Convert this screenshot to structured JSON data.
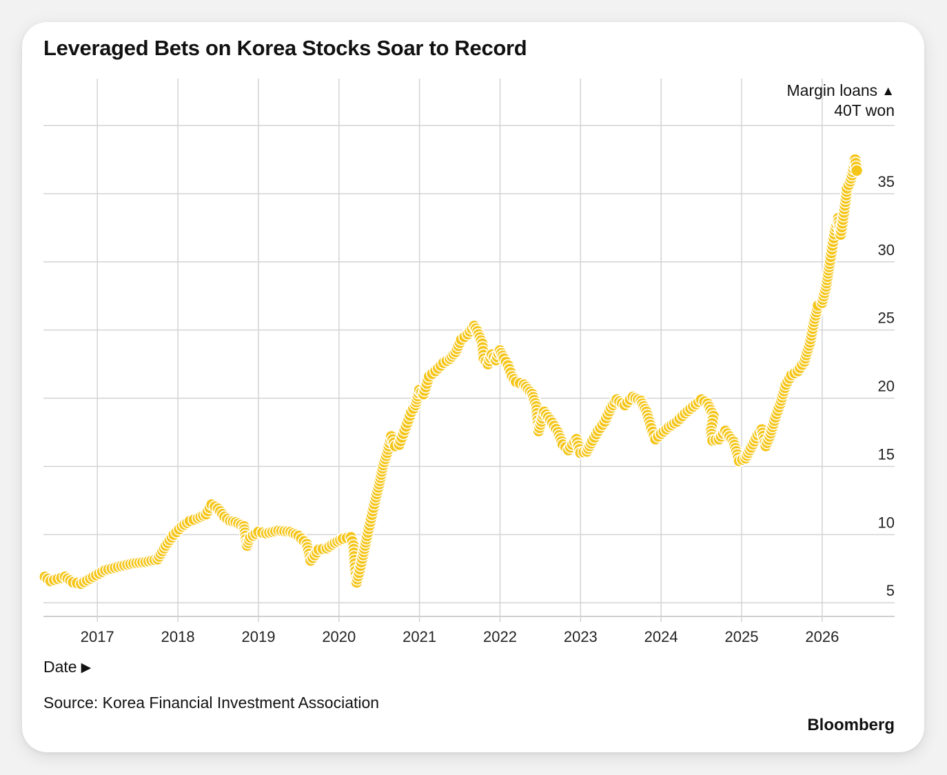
{
  "chart_data": {
    "type": "scatter",
    "title": "Leveraged Bets on Korea Stocks Soar to Record",
    "ylabel": "Margin loans",
    "yunit": "40T won",
    "xlabel": "Date",
    "source": "Source: Korea Financial Investment Association",
    "brand": "Bloomberg",
    "arrow_up": "▲",
    "arrow_right": "▶",
    "ylim": [
      4,
      40
    ],
    "xlim": [
      2016.33,
      2026.9
    ],
    "yticks": [
      5,
      10,
      15,
      20,
      25,
      30,
      35
    ],
    "xticks": [
      2017,
      2018,
      2019,
      2020,
      2021,
      2022,
      2023,
      2024,
      2025,
      2026
    ],
    "grid": true,
    "marker_color": "#F5C518",
    "points": [
      [
        2016.35,
        6.9
      ],
      [
        2016.42,
        6.6
      ],
      [
        2016.6,
        6.9
      ],
      [
        2016.7,
        6.5
      ],
      [
        2016.8,
        6.4
      ],
      [
        2016.95,
        6.9
      ],
      [
        2017.1,
        7.4
      ],
      [
        2017.3,
        7.7
      ],
      [
        2017.45,
        7.9
      ],
      [
        2017.6,
        8.0
      ],
      [
        2017.75,
        8.2
      ],
      [
        2017.85,
        9.2
      ],
      [
        2017.95,
        10.0
      ],
      [
        2018.05,
        10.6
      ],
      [
        2018.15,
        11.0
      ],
      [
        2018.25,
        11.2
      ],
      [
        2018.35,
        11.5
      ],
      [
        2018.42,
        12.2
      ],
      [
        2018.5,
        11.9
      ],
      [
        2018.58,
        11.3
      ],
      [
        2018.65,
        11.0
      ],
      [
        2018.72,
        10.9
      ],
      [
        2018.82,
        10.6
      ],
      [
        2018.86,
        9.2
      ],
      [
        2018.9,
        9.8
      ],
      [
        2019.0,
        10.2
      ],
      [
        2019.1,
        10.1
      ],
      [
        2019.25,
        10.3
      ],
      [
        2019.4,
        10.2
      ],
      [
        2019.5,
        9.9
      ],
      [
        2019.6,
        9.3
      ],
      [
        2019.65,
        8.1
      ],
      [
        2019.75,
        8.9
      ],
      [
        2019.85,
        9.0
      ],
      [
        2019.95,
        9.4
      ],
      [
        2020.05,
        9.7
      ],
      [
        2020.15,
        9.8
      ],
      [
        2020.18,
        9.2
      ],
      [
        2020.2,
        7.6
      ],
      [
        2020.22,
        6.5
      ],
      [
        2020.25,
        7.2
      ],
      [
        2020.3,
        8.5
      ],
      [
        2020.35,
        9.9
      ],
      [
        2020.4,
        11.2
      ],
      [
        2020.45,
        12.5
      ],
      [
        2020.5,
        13.7
      ],
      [
        2020.55,
        15.1
      ],
      [
        2020.6,
        16.0
      ],
      [
        2020.65,
        17.2
      ],
      [
        2020.7,
        16.5
      ],
      [
        2020.75,
        16.6
      ],
      [
        2020.8,
        17.4
      ],
      [
        2020.85,
        18.2
      ],
      [
        2020.9,
        19.0
      ],
      [
        2020.95,
        19.5
      ],
      [
        2021.0,
        20.6
      ],
      [
        2021.05,
        20.3
      ],
      [
        2021.12,
        21.6
      ],
      [
        2021.2,
        22.0
      ],
      [
        2021.3,
        22.6
      ],
      [
        2021.38,
        22.9
      ],
      [
        2021.45,
        23.4
      ],
      [
        2021.52,
        24.3
      ],
      [
        2021.6,
        24.7
      ],
      [
        2021.68,
        25.3
      ],
      [
        2021.72,
        24.9
      ],
      [
        2021.78,
        24.0
      ],
      [
        2021.8,
        22.9
      ],
      [
        2021.85,
        22.5
      ],
      [
        2021.9,
        23.2
      ],
      [
        2021.95,
        22.8
      ],
      [
        2022.0,
        23.5
      ],
      [
        2022.05,
        22.9
      ],
      [
        2022.1,
        22.4
      ],
      [
        2022.15,
        21.6
      ],
      [
        2022.2,
        21.2
      ],
      [
        2022.3,
        21.0
      ],
      [
        2022.4,
        20.3
      ],
      [
        2022.45,
        19.4
      ],
      [
        2022.48,
        17.6
      ],
      [
        2022.55,
        19.0
      ],
      [
        2022.65,
        18.2
      ],
      [
        2022.72,
        17.5
      ],
      [
        2022.78,
        16.6
      ],
      [
        2022.85,
        16.2
      ],
      [
        2022.95,
        17.0
      ],
      [
        2023.0,
        16.0
      ],
      [
        2023.08,
        16.1
      ],
      [
        2023.15,
        16.9
      ],
      [
        2023.22,
        17.6
      ],
      [
        2023.3,
        18.3
      ],
      [
        2023.38,
        19.3
      ],
      [
        2023.45,
        19.9
      ],
      [
        2023.55,
        19.5
      ],
      [
        2023.65,
        20.1
      ],
      [
        2023.75,
        19.8
      ],
      [
        2023.82,
        19.0
      ],
      [
        2023.88,
        17.8
      ],
      [
        2023.93,
        17.0
      ],
      [
        2024.0,
        17.4
      ],
      [
        2024.1,
        17.9
      ],
      [
        2024.2,
        18.3
      ],
      [
        2024.3,
        18.9
      ],
      [
        2024.4,
        19.4
      ],
      [
        2024.5,
        19.9
      ],
      [
        2024.58,
        19.6
      ],
      [
        2024.65,
        18.7
      ],
      [
        2024.62,
        17.6
      ],
      [
        2024.64,
        16.9
      ],
      [
        2024.72,
        17.0
      ],
      [
        2024.8,
        17.6
      ],
      [
        2024.9,
        16.8
      ],
      [
        2024.97,
        15.4
      ],
      [
        2025.05,
        15.6
      ],
      [
        2025.12,
        16.4
      ],
      [
        2025.2,
        17.3
      ],
      [
        2025.25,
        17.7
      ],
      [
        2025.3,
        16.5
      ],
      [
        2025.35,
        17.2
      ],
      [
        2025.42,
        18.6
      ],
      [
        2025.48,
        19.6
      ],
      [
        2025.55,
        21.0
      ],
      [
        2025.62,
        21.7
      ],
      [
        2025.7,
        22.0
      ],
      [
        2025.78,
        22.7
      ],
      [
        2025.85,
        24.1
      ],
      [
        2025.9,
        25.6
      ],
      [
        2025.95,
        26.8
      ],
      [
        2026.0,
        27.0
      ],
      [
        2026.05,
        28.2
      ],
      [
        2026.1,
        30.1
      ],
      [
        2026.13,
        31.2
      ],
      [
        2026.16,
        32.3
      ],
      [
        2026.2,
        33.2
      ],
      [
        2026.23,
        32.0
      ],
      [
        2026.26,
        33.1
      ],
      [
        2026.29,
        34.4
      ],
      [
        2026.31,
        35.4
      ],
      [
        2026.35,
        35.9
      ],
      [
        2026.38,
        36.6
      ],
      [
        2026.41,
        37.5
      ],
      [
        2026.43,
        36.7
      ]
    ]
  }
}
